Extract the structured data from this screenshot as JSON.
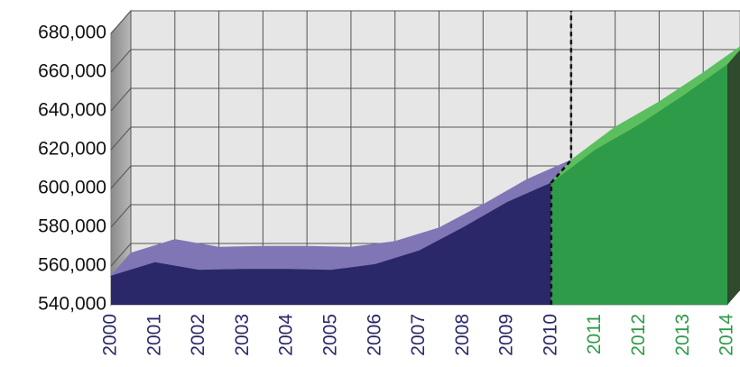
{
  "chart_data": {
    "type": "area3d",
    "categories": [
      "2000",
      "2001",
      "2002",
      "2003",
      "2004",
      "2005",
      "2006",
      "2007",
      "2008",
      "2009",
      "2010",
      "2011",
      "2012",
      "2013",
      "2014"
    ],
    "series": [
      {
        "color": "#2b2869",
        "depth_color": "#8076b5",
        "values": [
          555000,
          562000,
          558000,
          558500,
          558500,
          558000,
          561000,
          568000,
          580000,
          593000,
          603000,
          null,
          null,
          null,
          null
        ]
      },
      {
        "color": "#2e9b49",
        "depth_color": "#5cbf5f",
        "values": [
          null,
          null,
          null,
          null,
          null,
          null,
          null,
          null,
          null,
          null,
          603000,
          620000,
          633000,
          648000,
          664000
        ]
      }
    ],
    "ylim": [
      540000,
      680000
    ],
    "yticks": [
      {
        "value": 540000,
        "label": "540,000"
      },
      {
        "value": 560000,
        "label": "560,000"
      },
      {
        "value": 580000,
        "label": "580,000"
      },
      {
        "value": 600000,
        "label": "600,000"
      },
      {
        "value": 620000,
        "label": "620,000"
      },
      {
        "value": 640000,
        "label": "640,000"
      },
      {
        "value": 660000,
        "label": "660,000"
      },
      {
        "value": 680000,
        "label": "680,000"
      }
    ],
    "grid": true
  }
}
